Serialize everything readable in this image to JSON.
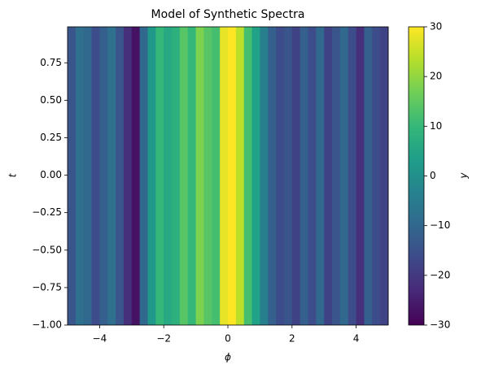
{
  "chart_data": {
    "type": "heatmap",
    "title": "Model of Synthetic Spectra",
    "x_label": "ϕ",
    "y_label": "t",
    "colorbar_label": "y",
    "colormap": "viridis",
    "x": [
      -4.875,
      -4.625,
      -4.375,
      -4.125,
      -3.875,
      -3.625,
      -3.375,
      -3.125,
      -2.875,
      -2.625,
      -2.375,
      -2.125,
      -1.875,
      -1.625,
      -1.375,
      -1.125,
      -0.875,
      -0.625,
      -0.375,
      -0.125,
      0.125,
      0.375,
      0.625,
      0.875,
      1.125,
      1.375,
      1.625,
      1.875,
      2.125,
      2.375,
      2.625,
      2.875,
      3.125,
      3.375,
      3.625,
      3.875,
      4.125,
      4.375,
      4.625,
      4.875
    ],
    "values": [
      -14,
      -8,
      -10,
      -16,
      -12,
      -8,
      -14,
      -22,
      -27,
      -10,
      2,
      10,
      6,
      8,
      14,
      10,
      18,
      14,
      12,
      28,
      30,
      24,
      12,
      4,
      -4,
      -12,
      -16,
      -14,
      -18,
      -12,
      -16,
      -10,
      -18,
      -14,
      -10,
      -16,
      -22,
      -12,
      -16,
      -18
    ],
    "xlim": [
      -5,
      5
    ],
    "xticks": [
      {
        "value": -4,
        "label": "−4"
      },
      {
        "value": -2,
        "label": "−2"
      },
      0,
      2,
      4
    ],
    "ylim": [
      -1,
      0.99
    ],
    "yticks": [
      {
        "value": -1,
        "label": "−1.00"
      },
      {
        "value": -0.75,
        "label": "−0.75"
      },
      {
        "value": -0.5,
        "label": "−0.50"
      },
      {
        "value": -0.25,
        "label": "−0.25"
      },
      {
        "value": 0,
        "label": "0.00"
      },
      0.25,
      {
        "value": 0.5,
        "label": "0.50"
      },
      0.75
    ],
    "clim": [
      -30,
      30
    ],
    "cticks": [
      {
        "value": -30,
        "label": "−30"
      },
      {
        "value": -20,
        "label": "−20"
      },
      {
        "value": -10,
        "label": "−10"
      },
      0,
      10,
      20,
      30
    ]
  }
}
